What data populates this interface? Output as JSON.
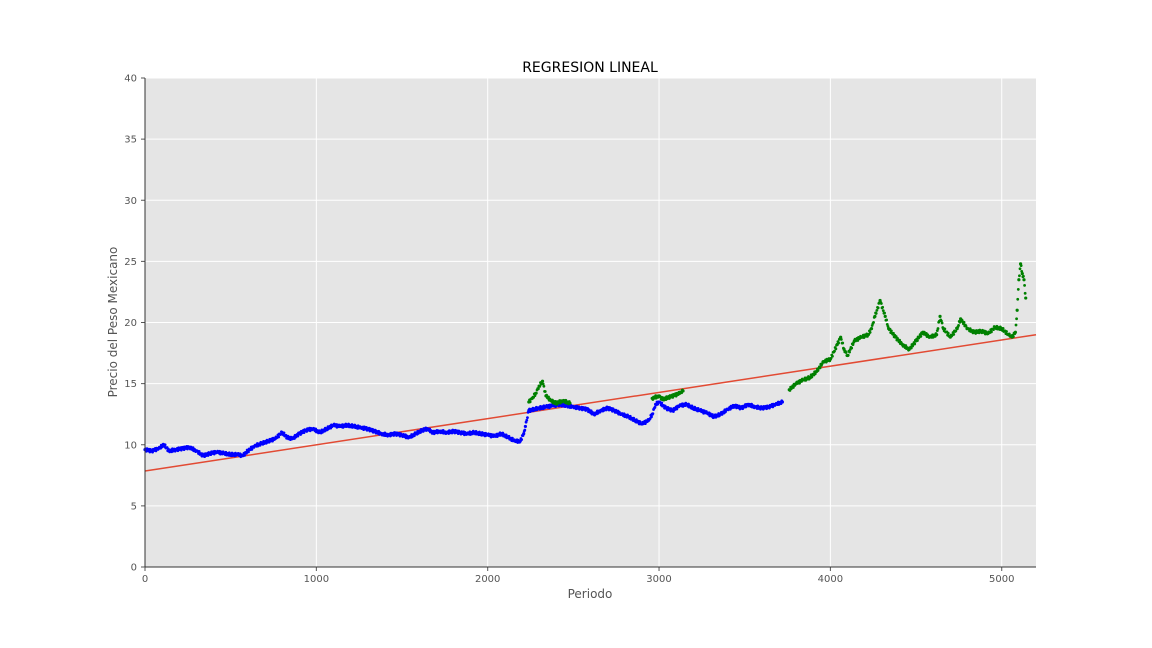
{
  "chart_data": {
    "type": "scatter",
    "title": "REGRESION LINEAL",
    "xlabel": "Periodo",
    "ylabel": "Precio del Peso Mexicano",
    "xlim": [
      0,
      5200
    ],
    "ylim": [
      0,
      40
    ],
    "x_ticks": [
      0,
      1000,
      2000,
      3000,
      4000,
      5000
    ],
    "y_ticks": [
      0,
      5,
      10,
      15,
      20,
      25,
      30,
      35,
      40
    ],
    "grid": true,
    "background": "#e5e5e5",
    "colors": {
      "blue": "#0000ff",
      "green": "#008000",
      "regression": "#e24a33",
      "grid": "#ffffff"
    },
    "series": [
      {
        "color": "blue",
        "points": [
          [
            0,
            9.6
          ],
          [
            40,
            9.5
          ],
          [
            80,
            9.7
          ],
          [
            110,
            10.0
          ],
          [
            140,
            9.5
          ],
          [
            180,
            9.6
          ],
          [
            220,
            9.7
          ],
          [
            260,
            9.8
          ],
          [
            300,
            9.5
          ],
          [
            340,
            9.1
          ],
          [
            380,
            9.3
          ],
          [
            420,
            9.4
          ],
          [
            460,
            9.3
          ],
          [
            500,
            9.2
          ],
          [
            540,
            9.2
          ],
          [
            570,
            9.1
          ],
          [
            600,
            9.5
          ],
          [
            640,
            9.9
          ],
          [
            680,
            10.1
          ],
          [
            720,
            10.3
          ],
          [
            760,
            10.5
          ],
          [
            800,
            11.0
          ],
          [
            830,
            10.6
          ],
          [
            860,
            10.5
          ],
          [
            900,
            10.9
          ],
          [
            940,
            11.2
          ],
          [
            980,
            11.3
          ],
          [
            1020,
            11.0
          ],
          [
            1060,
            11.3
          ],
          [
            1100,
            11.6
          ],
          [
            1140,
            11.5
          ],
          [
            1180,
            11.6
          ],
          [
            1220,
            11.5
          ],
          [
            1260,
            11.4
          ],
          [
            1300,
            11.3
          ],
          [
            1340,
            11.1
          ],
          [
            1380,
            10.9
          ],
          [
            1420,
            10.8
          ],
          [
            1460,
            10.9
          ],
          [
            1500,
            10.8
          ],
          [
            1540,
            10.6
          ],
          [
            1580,
            10.9
          ],
          [
            1620,
            11.2
          ],
          [
            1650,
            11.3
          ],
          [
            1680,
            11.0
          ],
          [
            1720,
            11.1
          ],
          [
            1760,
            11.0
          ],
          [
            1800,
            11.1
          ],
          [
            1840,
            11.0
          ],
          [
            1880,
            10.9
          ],
          [
            1920,
            11.0
          ],
          [
            1960,
            10.9
          ],
          [
            2000,
            10.8
          ],
          [
            2040,
            10.7
          ],
          [
            2080,
            10.9
          ],
          [
            2120,
            10.6
          ],
          [
            2160,
            10.3
          ],
          [
            2190,
            10.3
          ],
          [
            2210,
            10.9
          ],
          [
            2220,
            11.5
          ],
          [
            2240,
            12.8
          ],
          [
            2300,
            13.0
          ],
          [
            2340,
            13.1
          ],
          [
            2380,
            13.2
          ],
          [
            2420,
            13.3
          ],
          [
            2460,
            13.2
          ],
          [
            2500,
            13.1
          ],
          [
            2540,
            13.0
          ],
          [
            2580,
            12.9
          ],
          [
            2620,
            12.5
          ],
          [
            2660,
            12.8
          ],
          [
            2700,
            13.0
          ],
          [
            2740,
            12.8
          ],
          [
            2780,
            12.5
          ],
          [
            2820,
            12.3
          ],
          [
            2860,
            12.0
          ],
          [
            2900,
            11.7
          ],
          [
            2940,
            12.0
          ],
          [
            2960,
            12.5
          ],
          [
            2980,
            13.3
          ],
          [
            3000,
            13.5
          ],
          [
            3040,
            13.0
          ],
          [
            3080,
            12.8
          ],
          [
            3120,
            13.2
          ],
          [
            3160,
            13.3
          ],
          [
            3200,
            13.0
          ],
          [
            3240,
            12.8
          ],
          [
            3280,
            12.6
          ],
          [
            3320,
            12.3
          ],
          [
            3360,
            12.5
          ],
          [
            3400,
            12.9
          ],
          [
            3440,
            13.2
          ],
          [
            3480,
            13.0
          ],
          [
            3520,
            13.3
          ],
          [
            3560,
            13.1
          ],
          [
            3600,
            13.0
          ],
          [
            3640,
            13.1
          ],
          [
            3680,
            13.3
          ],
          [
            3720,
            13.5
          ]
        ]
      },
      {
        "color": "green",
        "points": [
          [
            2240,
            13.5
          ],
          [
            2260,
            13.8
          ],
          [
            2280,
            14.2
          ],
          [
            2300,
            14.8
          ],
          [
            2320,
            15.2
          ],
          [
            2340,
            14.0
          ],
          [
            2370,
            13.6
          ],
          [
            2400,
            13.4
          ],
          [
            2440,
            13.6
          ],
          [
            2480,
            13.4
          ],
          [
            2960,
            13.8
          ],
          [
            3000,
            14.0
          ],
          [
            3020,
            13.7
          ],
          [
            3120,
            14.2
          ],
          [
            3140,
            14.4
          ],
          [
            3760,
            14.5
          ],
          [
            3800,
            15.0
          ],
          [
            3840,
            15.3
          ],
          [
            3880,
            15.5
          ],
          [
            3920,
            16.0
          ],
          [
            3960,
            16.8
          ],
          [
            4000,
            17.0
          ],
          [
            4040,
            18.2
          ],
          [
            4060,
            18.8
          ],
          [
            4080,
            17.8
          ],
          [
            4100,
            17.3
          ],
          [
            4140,
            18.5
          ],
          [
            4180,
            18.8
          ],
          [
            4220,
            19.0
          ],
          [
            4240,
            19.5
          ],
          [
            4260,
            20.5
          ],
          [
            4290,
            21.8
          ],
          [
            4320,
            20.5
          ],
          [
            4340,
            19.5
          ],
          [
            4380,
            18.8
          ],
          [
            4420,
            18.2
          ],
          [
            4460,
            17.8
          ],
          [
            4500,
            18.5
          ],
          [
            4540,
            19.2
          ],
          [
            4580,
            18.8
          ],
          [
            4620,
            19.0
          ],
          [
            4640,
            20.5
          ],
          [
            4660,
            19.5
          ],
          [
            4700,
            18.8
          ],
          [
            4740,
            19.5
          ],
          [
            4760,
            20.3
          ],
          [
            4800,
            19.5
          ],
          [
            4840,
            19.2
          ],
          [
            4880,
            19.3
          ],
          [
            4920,
            19.1
          ],
          [
            4960,
            19.6
          ],
          [
            5000,
            19.5
          ],
          [
            5040,
            19.0
          ],
          [
            5060,
            18.8
          ],
          [
            5080,
            19.2
          ],
          [
            5090,
            21.0
          ],
          [
            5100,
            23.5
          ],
          [
            5110,
            24.8
          ],
          [
            5120,
            24.0
          ],
          [
            5130,
            23.5
          ],
          [
            5140,
            22.0
          ]
        ]
      }
    ],
    "regression_line": {
      "x": [
        0,
        5200
      ],
      "y": [
        7.85,
        19.0
      ]
    }
  }
}
